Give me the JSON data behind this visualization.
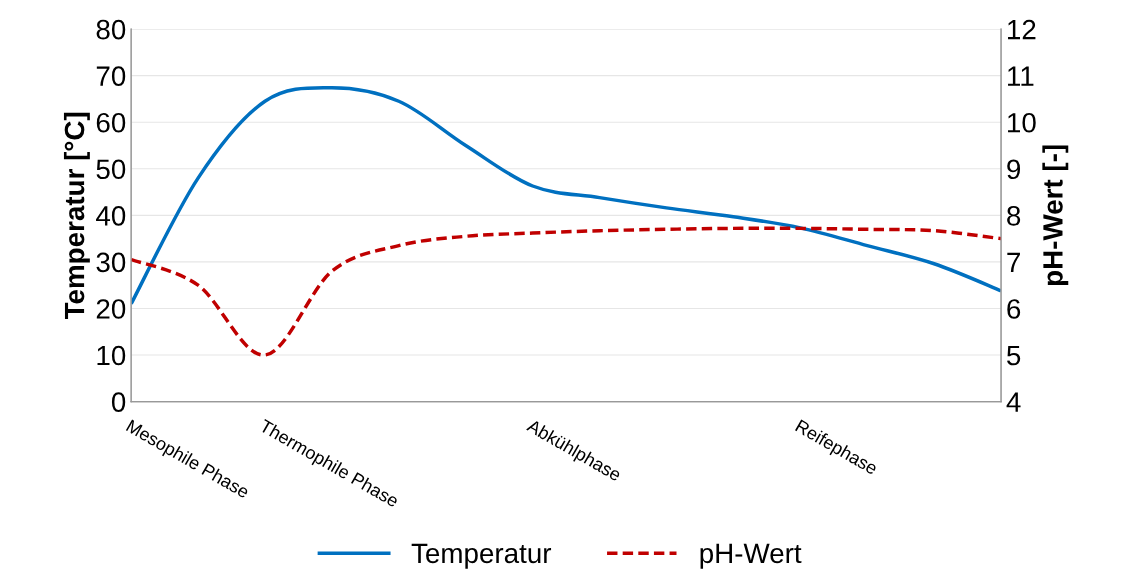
{
  "chart_data": {
    "type": "line",
    "categories": [
      "Mesophile Phase",
      null,
      "Thermophile Phase",
      null,
      null,
      null,
      "Abkühlphase",
      null,
      null,
      null,
      "Reifephase",
      null,
      null,
      null
    ],
    "series": [
      {
        "name": "Temperatur",
        "color": "#0070c0",
        "line_style": "solid",
        "values": [
          21,
          48,
          64.5,
          67.4,
          64.5,
          55,
          46.3,
          43.8,
          41.6,
          39.7,
          37.3,
          33.5,
          29.6,
          23.8
        ]
      },
      {
        "name": "pH-Wert",
        "color": "#c00000",
        "line_style": "dashed",
        "axis": "y2",
        "values": [
          7.05,
          6.5,
          5.0,
          6.8,
          7.35,
          7.55,
          7.62,
          7.67,
          7.7,
          7.72,
          7.72,
          7.7,
          7.67,
          7.5
        ]
      }
    ],
    "ylabel": "Temperatur [°C]",
    "y2label": "pH-Wert [-]",
    "ylim": [
      0,
      80
    ],
    "yticks": [
      0,
      10,
      20,
      30,
      40,
      50,
      60,
      70,
      80
    ],
    "y2lim": [
      4,
      12
    ],
    "y2ticks": [
      4,
      5,
      6,
      7,
      8,
      9,
      10,
      11,
      12
    ],
    "grid": "y",
    "legend": "bottom",
    "marker": "none"
  }
}
